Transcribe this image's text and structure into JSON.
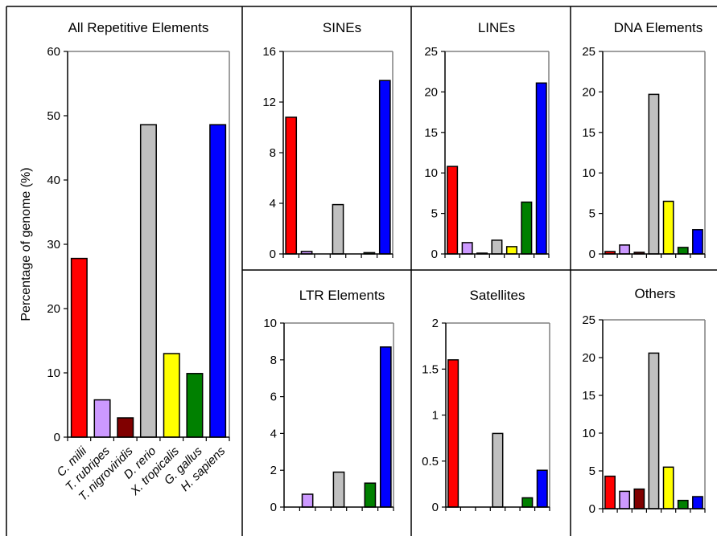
{
  "figure": {
    "ylabel": "Percentage of genome (%)",
    "species": [
      "C. milii",
      "T. rubripes",
      "T. nigroviridis",
      "D. rerio",
      "X. tropicalis",
      "G. gallus",
      "H. sapiens"
    ],
    "colors": [
      "#ff0000",
      "#cc99ff",
      "#800000",
      "#c0c0c0",
      "#ffff00",
      "#008000",
      "#0000ff"
    ]
  },
  "chart_data": [
    {
      "type": "bar",
      "title": "All Repetitive Elements",
      "categories": [
        "C. milii",
        "T. rubripes",
        "T. nigroviridis",
        "D. rerio",
        "X. tropicalis",
        "G. gallus",
        "H. sapiens"
      ],
      "values": [
        27.8,
        5.8,
        3.0,
        48.6,
        13.0,
        9.9,
        48.6
      ],
      "ylim": [
        0,
        60
      ],
      "yticks": [
        "0",
        "10",
        "20",
        "30",
        "40",
        "50",
        "60"
      ]
    },
    {
      "type": "bar",
      "title": "SINEs",
      "categories": [
        "C. milii",
        "T. rubripes",
        "T. nigroviridis",
        "D. rerio",
        "X. tropicalis",
        "G. gallus",
        "H. sapiens"
      ],
      "values": [
        10.8,
        0.2,
        0.0,
        3.9,
        0.0,
        0.1,
        13.7
      ],
      "ylim": [
        0,
        16
      ],
      "yticks": [
        "0",
        "4",
        "8",
        "12",
        "16"
      ]
    },
    {
      "type": "bar",
      "title": "LINEs",
      "categories": [
        "C. milii",
        "T. rubripes",
        "T. nigroviridis",
        "D. rerio",
        "X. tropicalis",
        "G. gallus",
        "H. sapiens"
      ],
      "values": [
        10.8,
        1.4,
        0.1,
        1.7,
        0.9,
        6.4,
        21.1
      ],
      "ylim": [
        0,
        25
      ],
      "yticks": [
        "0",
        "5",
        "10",
        "15",
        "20",
        "25"
      ]
    },
    {
      "type": "bar",
      "title": "DNA Elements",
      "categories": [
        "C. milii",
        "T. rubripes",
        "T. nigroviridis",
        "D. rerio",
        "X. tropicalis",
        "G. gallus",
        "H. sapiens"
      ],
      "values": [
        0.3,
        1.1,
        0.2,
        19.7,
        6.5,
        0.8,
        3.0
      ],
      "ylim": [
        0,
        25
      ],
      "yticks": [
        "0",
        "5",
        "10",
        "15",
        "20",
        "25"
      ]
    },
    {
      "type": "bar",
      "title": "LTR Elements",
      "categories": [
        "C. milii",
        "T. rubripes",
        "T. nigroviridis",
        "D. rerio",
        "X. tropicalis",
        "G. gallus",
        "H. sapiens"
      ],
      "values": [
        0.0,
        0.7,
        0.0,
        1.9,
        0.0,
        1.3,
        8.7
      ],
      "ylim": [
        0,
        10
      ],
      "yticks": [
        "0",
        "2",
        "4",
        "6",
        "8",
        "10"
      ]
    },
    {
      "type": "bar",
      "title": "Satellites",
      "categories": [
        "C. milii",
        "T. rubripes",
        "T. nigroviridis",
        "D. rerio",
        "X. tropicalis",
        "G. gallus",
        "H. sapiens"
      ],
      "values": [
        1.6,
        0.0,
        0.0,
        0.8,
        0.0,
        0.1,
        0.4
      ],
      "ylim": [
        0,
        2
      ],
      "yticks": [
        "0",
        "0.5",
        "1",
        "1.5",
        "2"
      ]
    },
    {
      "type": "bar",
      "title": "Others",
      "categories": [
        "C. milii",
        "T. rubripes",
        "T. nigroviridis",
        "D. rerio",
        "X. tropicalis",
        "G. gallus",
        "H. sapiens"
      ],
      "values": [
        4.3,
        2.3,
        2.6,
        20.6,
        5.5,
        1.1,
        1.6
      ],
      "ylim": [
        0,
        25
      ],
      "yticks": [
        "0",
        "5",
        "10",
        "15",
        "20",
        "25"
      ]
    }
  ]
}
